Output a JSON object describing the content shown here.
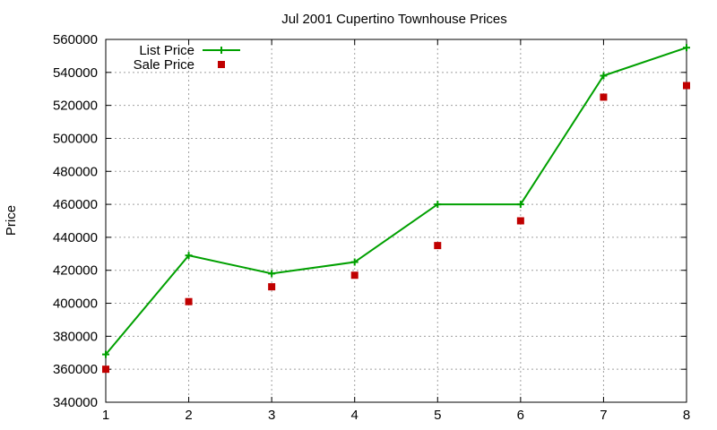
{
  "chart_data": {
    "type": "line",
    "title": "Jul 2001 Cupertino Townhouse Prices",
    "xlabel": "",
    "ylabel": "Price",
    "x": [
      1,
      2,
      3,
      4,
      5,
      6,
      7,
      8
    ],
    "xlim": [
      1,
      8
    ],
    "ylim": [
      340000,
      560000
    ],
    "xticks": [
      "1",
      "2",
      "3",
      "4",
      "5",
      "6",
      "7",
      "8"
    ],
    "yticks": [
      "340000",
      "360000",
      "380000",
      "400000",
      "420000",
      "440000",
      "460000",
      "480000",
      "500000",
      "520000",
      "540000",
      "560000"
    ],
    "grid": true,
    "legend_position": "top-left",
    "series": [
      {
        "name": "List Price",
        "style": "line-with-plus-markers",
        "color": "#00a000",
        "values": [
          369000,
          429000,
          418000,
          425000,
          460000,
          460000,
          538000,
          555000
        ]
      },
      {
        "name": "Sale Price",
        "style": "square-markers",
        "color": "#c00000",
        "values": [
          360000,
          401000,
          410000,
          417000,
          435000,
          450000,
          525000,
          532000
        ]
      }
    ]
  }
}
